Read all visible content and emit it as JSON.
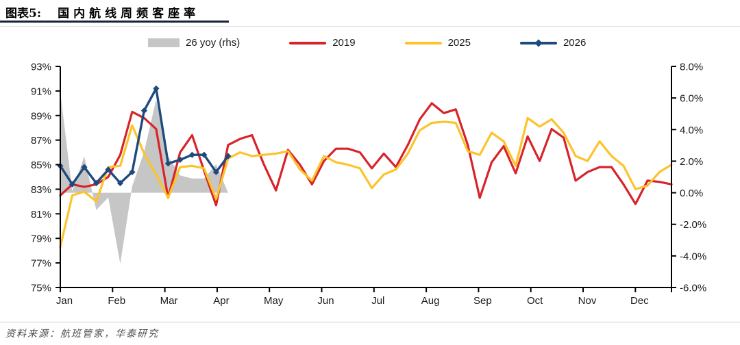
{
  "header": {
    "label": "图表5:",
    "title": "国内航线周频客座率"
  },
  "legend": {
    "items": [
      {
        "label": "26 yoy (rhs)",
        "swatch": "area",
        "color": "#c6c6c6"
      },
      {
        "label": "2019",
        "swatch": "line",
        "color": "#d8232a"
      },
      {
        "label": "2025",
        "swatch": "line",
        "color": "#fcc32a"
      },
      {
        "label": "2026",
        "swatch": "line-marker",
        "color": "#1e4a7e"
      }
    ]
  },
  "source": "资料来源：航班管家，华泰研究",
  "chart_data": {
    "type": "line+area",
    "title": "国内航线周频客座率",
    "x_unit": "week (≈52 weekly points, Jan–Dec)",
    "months": [
      "Jan",
      "Feb",
      "Mar",
      "Apr",
      "May",
      "Jun",
      "Jul",
      "Aug",
      "Sep",
      "Oct",
      "Nov",
      "Dec"
    ],
    "left_axis": {
      "labels": [
        "93%",
        "91%",
        "89%",
        "87%",
        "85%",
        "83%",
        "81%",
        "79%",
        "77%",
        "75%"
      ],
      "values": [
        93,
        91,
        89,
        87,
        85,
        83,
        81,
        79,
        77,
        75
      ],
      "ylim": [
        75,
        93
      ]
    },
    "right_axis": {
      "labels": [
        "8.0%",
        "6.0%",
        "4.0%",
        "2.0%",
        "0.0%",
        "-2.0%",
        "-4.0%",
        "-6.0%"
      ],
      "values": [
        8,
        6,
        4,
        2,
        0,
        -2,
        -4,
        -6
      ],
      "ylim": [
        -6,
        8
      ]
    },
    "grid": false,
    "legend_position": "top",
    "series": [
      {
        "id": "yoy-area",
        "name": "26 yoy (rhs)",
        "axis": "right",
        "type": "area",
        "color": "#c6c6c6",
        "values": [
          6.4,
          0.1,
          2.3,
          -1.1,
          -0.3,
          -4.5,
          0.4,
          2.6,
          5.9,
          2.3,
          1.1,
          0.9,
          0.9,
          1.8,
          0.0
        ]
      },
      {
        "id": "2019",
        "name": "2019",
        "axis": "left",
        "type": "line",
        "color": "#d8232a",
        "width": 3.2,
        "values": [
          82.5,
          83.4,
          83.2,
          83.4,
          84.0,
          85.8,
          89.3,
          88.8,
          87.9,
          82.3,
          86.0,
          87.4,
          84.5,
          81.7,
          86.6,
          87.1,
          87.4,
          85.0,
          82.9,
          86.2,
          85.0,
          83.4,
          85.3,
          86.3,
          86.3,
          86.0,
          84.7,
          85.9,
          84.8,
          86.6,
          88.7,
          90.0,
          89.2,
          89.5,
          86.6,
          82.3,
          85.2,
          86.5,
          84.3,
          87.3,
          85.3,
          87.9,
          87.2,
          83.7,
          84.4,
          84.8,
          84.8,
          83.4,
          81.8,
          83.7,
          83.6,
          83.4
        ]
      },
      {
        "id": "2025",
        "name": "2025",
        "axis": "left",
        "type": "line",
        "color": "#fcc32a",
        "width": 3.2,
        "values": [
          78.3,
          82.5,
          82.8,
          82.0,
          84.8,
          84.9,
          88.2,
          85.9,
          84.2,
          82.3,
          84.8,
          84.9,
          84.7,
          82.2,
          85.5,
          86.0,
          85.7,
          85.8,
          85.9,
          86.1,
          84.6,
          83.7,
          85.7,
          85.2,
          85.0,
          84.7,
          83.1,
          84.2,
          84.6,
          85.9,
          87.8,
          88.4,
          88.5,
          88.4,
          86.1,
          85.8,
          87.6,
          86.9,
          84.9,
          88.8,
          88.1,
          88.7,
          87.6,
          85.7,
          85.3,
          86.9,
          85.7,
          84.9,
          83.0,
          83.3,
          84.4,
          85.0
        ]
      },
      {
        "id": "2026",
        "name": "2026",
        "axis": "left",
        "type": "line",
        "marker": "diamond",
        "color": "#1e4a7e",
        "width": 3.4,
        "values": [
          84.9,
          83.4,
          84.8,
          83.5,
          84.6,
          83.5,
          84.4,
          89.4,
          91.2,
          85.1,
          85.4,
          85.8,
          85.8,
          84.4,
          85.7
        ]
      }
    ]
  }
}
